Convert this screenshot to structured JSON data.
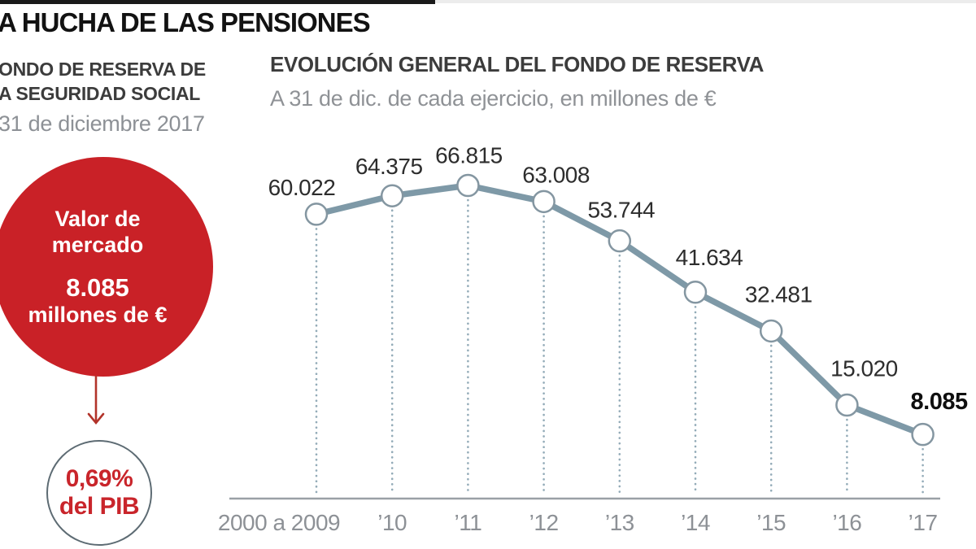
{
  "header": {
    "title": "A HUCHA DE LAS PENSIONES"
  },
  "sidebar": {
    "heading_line1": "ONDO DE RESERVA DE",
    "heading_line2": "A SEGURIDAD SOCIAL",
    "date": "31 de diciembre 2017",
    "market_value_circle": {
      "line1": "Valor de",
      "line2": "mercado",
      "amount": "8.085",
      "unit": "millones de €",
      "bg_color": "#c92127",
      "text_color": "#ffffff"
    },
    "pib_circle": {
      "value": "0,69%",
      "label": "del PIB",
      "text_color": "#c9252b",
      "border_color": "#5d6b73"
    },
    "arrow_color": "#b2332a"
  },
  "chart_data": {
    "type": "line",
    "title": "EVOLUCIÓN GENERAL DEL FONDO DE RESERVA",
    "subtitle": "A 31 de dic. de cada ejercicio, en millones de €",
    "categories": [
      "2000 a 2009",
      "’10",
      "’11",
      "’12",
      "’13",
      "’14",
      "’15",
      "’16",
      "’17"
    ],
    "values": [
      60022,
      64375,
      66815,
      63008,
      53744,
      41634,
      32481,
      15020,
      8085
    ],
    "point_labels": [
      "60.022",
      "64.375",
      "66.815",
      "63.008",
      "53.744",
      "41.634",
      "32.481",
      "15.020",
      "8.085"
    ],
    "emphasized_label_index": 8,
    "ylim": [
      0,
      70000
    ],
    "grid": "dotted-vertical-guides",
    "legend": "none",
    "line_color": "#7e99a7",
    "marker_fill": "#ffffff",
    "marker_stroke": "#8496a1",
    "guide_color": "#93abb8",
    "axis_color": "#9aa0a6",
    "label_color": "#2d2d2d",
    "emphasized_label_color": "#0f0f0f",
    "tick_label_color": "#8d9196"
  }
}
